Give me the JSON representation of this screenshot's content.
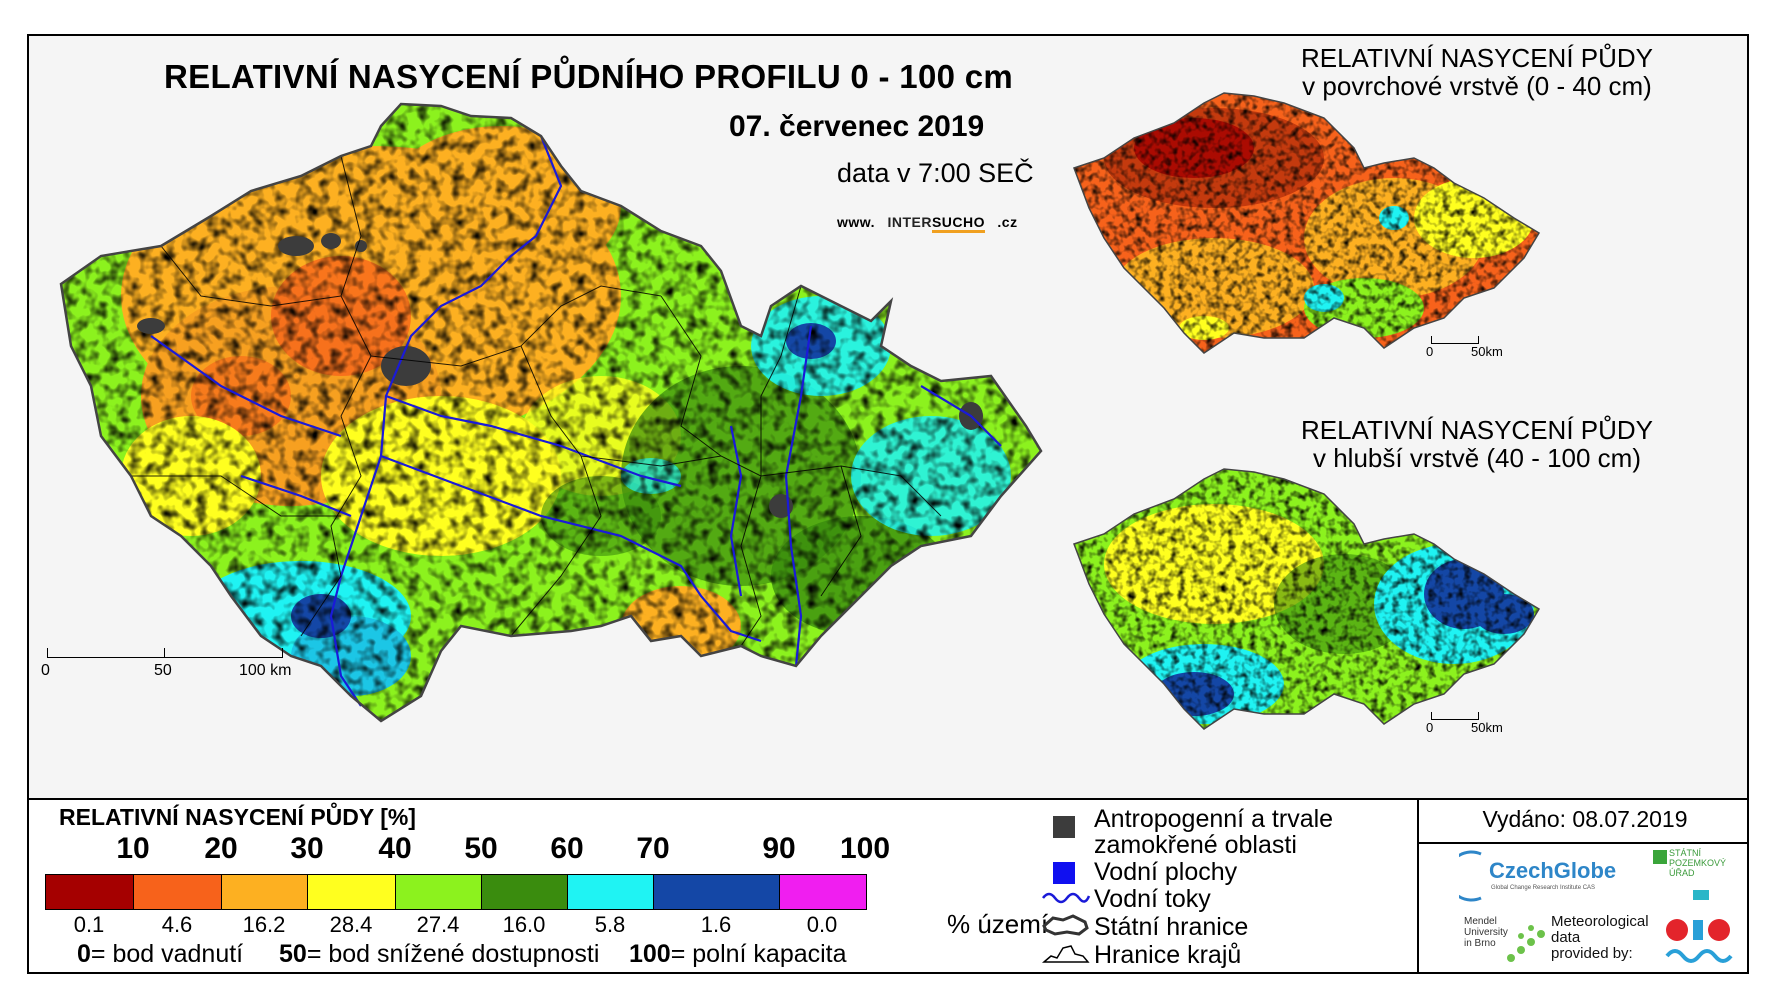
{
  "main": {
    "title": "RELATIVNÍ NASYCENÍ PŮDNÍHO PROFILU 0 - 100 cm",
    "date": "07. červenec 2019",
    "data_time": "data v 7:00 SEČ",
    "web_prefix": "www.",
    "web_mid": "INTER",
    "web_brand": "SUCHO",
    "web_suffix": ".cz",
    "scale": {
      "zero": "0",
      "mid": "50",
      "end": "100 km"
    }
  },
  "inset_top": {
    "title_line1": "RELATIVNÍ NASYCENÍ PŮDY",
    "title_line2": "v povrchové vrstvě (0 - 40 cm)",
    "scale_zero": "0",
    "scale_end": "50km"
  },
  "inset_bottom": {
    "title_line1": "RELATIVNÍ NASYCENÍ PŮDY",
    "title_line2": "v hlubší vrstvě (40 - 100 cm)",
    "scale_zero": "0",
    "scale_end": "50km"
  },
  "legend": {
    "title": "RELATIVNÍ NASYCENÍ PŮDY [%]",
    "ticks": [
      "10",
      "20",
      "30",
      "40",
      "50",
      "60",
      "70",
      "90",
      "100"
    ],
    "classes": [
      {
        "color": "#a50000",
        "percent": "0.1"
      },
      {
        "color": "#f7621b",
        "percent": "4.6"
      },
      {
        "color": "#fdb021",
        "percent": "16.2"
      },
      {
        "color": "#ffff1f",
        "percent": "28.4"
      },
      {
        "color": "#8cf21e",
        "percent": "27.4"
      },
      {
        "color": "#3a8c0e",
        "percent": "16.0"
      },
      {
        "color": "#1ff3f3",
        "percent": "5.8"
      },
      {
        "color": "#1447a6",
        "percent": "1.6"
      },
      {
        "color": "#f01ef0",
        "percent": "0.0"
      }
    ],
    "percent_label": "% území",
    "footnote": [
      {
        "key": "0",
        "text": "= bod vadnutí"
      },
      {
        "key": "50",
        "text": "= bod snížené dostupnosti"
      },
      {
        "key": "100",
        "text": "= polní kapacita"
      }
    ]
  },
  "map_legend": {
    "anthropogenic_line1": "Antropogenní a trvale",
    "anthropogenic_line2": "zamokřené oblasti",
    "water_bodies": "Vodní plochy",
    "rivers": "Vodní toky",
    "state_border": "Státní hranice",
    "region_border": "Hranice krajů"
  },
  "issued": "Vydáno: 08.07.2019",
  "logos": {
    "czechglobe": "CzechGlobe",
    "czechglobe_sub": "Global Change Research Institute CAS",
    "spu_line1": "STÁTNÍ",
    "spu_line2": "POZEMKOVÝ",
    "spu_line3": "ÚŘAD",
    "mendel_line1": "Mendel",
    "mendel_line2": "University",
    "mendel_line3": "in Brno",
    "meteo_line1": "Meteorological",
    "meteo_line2": "data",
    "meteo_line3": "provided by:"
  },
  "colors": {
    "anthropogenic": "#3c3c3c",
    "water_bodies": "#1010f0",
    "rivers": "#1a1ad8"
  }
}
